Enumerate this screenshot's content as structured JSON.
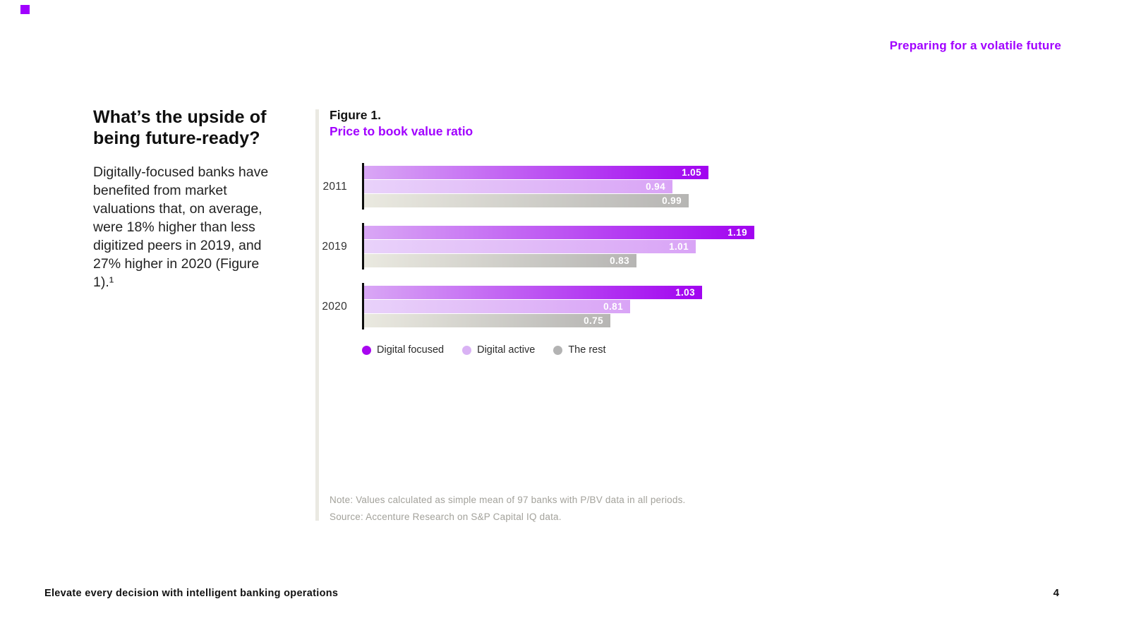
{
  "page": {
    "header_tag": "Preparing for a volatile future",
    "footer_title": "Elevate every decision with intelligent banking operations",
    "page_number": "4"
  },
  "left_column": {
    "heading": "What’s the upside of being future-ready?",
    "body": "Digitally-focused banks have benefited from market valuations that, on average, were 18% higher than less digitized peers in 2019, and 27% higher in 2020 (Figure 1).¹"
  },
  "figure": {
    "label": "Figure 1.",
    "title": "Price to book value ratio",
    "note": "Note: Values calculated as simple mean of 97 banks with P/BV data in all periods.",
    "source": "Source: Accenture Research on S&P Capital IQ data."
  },
  "colors": {
    "accent_purple": "#a100ff",
    "digital_focused_start": "#d9a7f5",
    "digital_focused_end": "#a103f0",
    "digital_active_start": "#e9d2fa",
    "digital_active_end": "#d9a4f6",
    "rest_start": "#eae9e0",
    "rest_end": "#b6b5b3",
    "legend_focused_dot": "#a806f0",
    "legend_active_dot": "#d9b2f4",
    "legend_rest_dot": "#b3b3b3"
  },
  "chart_data": {
    "type": "bar",
    "orientation": "horizontal",
    "title": "Price to book value ratio",
    "categories": [
      "2011",
      "2019",
      "2020"
    ],
    "series": [
      {
        "name": "Digital focused",
        "values": [
          1.05,
          1.19,
          1.03
        ]
      },
      {
        "name": "Digital active",
        "values": [
          0.94,
          1.01,
          0.81
        ]
      },
      {
        "name": "The rest",
        "values": [
          0.99,
          0.83,
          0.75
        ]
      }
    ],
    "xlim": [
      0,
      1.19
    ],
    "value_labels": "inside-end, white, 2 decimal places",
    "legend_position": "bottom",
    "grid": false
  }
}
